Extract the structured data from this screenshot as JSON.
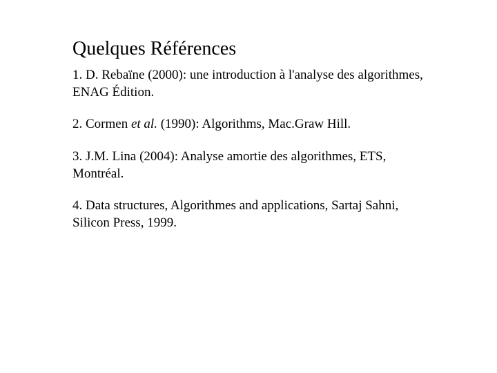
{
  "title": "Quelques Références",
  "references": {
    "r1_part1": "1. D. Rebaïne (2000): une introduction à l'analyse des algorithmes, ENAG Édition.",
    "r2_prefix": "2. Cormen ",
    "r2_italic": "et al.",
    "r2_suffix": " (1990): Algorithms, Mac.Graw Hill.",
    "r3": "3. J.M. Lina (2004): Analyse amortie des algorithmes, ETS, Montréal.",
    "r4": "4. Data structures, Algorithmes and applications, Sartaj Sahni, Silicon Press, 1999."
  },
  "colors": {
    "background": "#ffffff",
    "text": "#000000"
  },
  "typography": {
    "title_fontsize": 28,
    "body_fontsize": 19,
    "font_family": "Times New Roman"
  }
}
